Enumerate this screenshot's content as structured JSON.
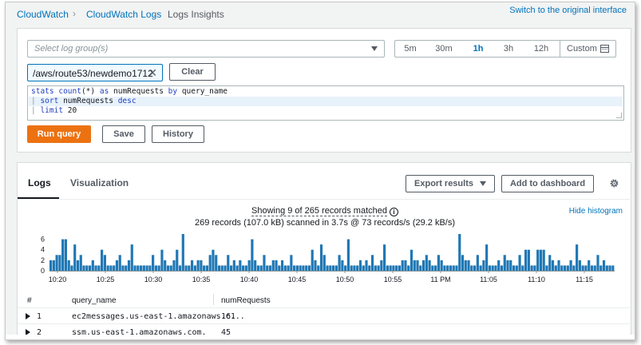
{
  "breadcrumb": {
    "items": [
      "CloudWatch",
      "CloudWatch Logs",
      "Logs Insights"
    ]
  },
  "switch_link": "Switch to the original interface",
  "query": {
    "log_group_placeholder": "Select log group(s)",
    "time_ranges": [
      "5m",
      "30m",
      "1h",
      "3h",
      "12h"
    ],
    "time_selected": "1h",
    "custom_label": "Custom",
    "selected_log_group": "/aws/route53/newdemo1712",
    "clear_label": "Clear",
    "code": {
      "line1": {
        "kw1": "stats",
        "plain1": " ",
        "kw2": "count",
        "plain2": "(*) ",
        "kw3": "as",
        "plain3": " numRequests ",
        "kw4": "by",
        "plain4": " query_name"
      },
      "line2": {
        "pipe": "| ",
        "kw1": "sort",
        "plain1": " numRequests ",
        "kw2": "desc"
      },
      "line3": {
        "pipe": "| ",
        "kw1": "limit",
        "plain1": " 20"
      }
    },
    "run_label": "Run query",
    "save_label": "Save",
    "history_label": "History"
  },
  "results": {
    "tabs": [
      "Logs",
      "Visualization"
    ],
    "export_label": "Export results",
    "add_dashboard_label": "Add to dashboard",
    "showing_text": "Showing 9 of 265 records matched",
    "scanned_text": "269 records (107.0 kB) scanned in 3.7s @ 73 records/s (29.2 kB/s)",
    "hide_histogram": "Hide histogram",
    "columns": [
      "#",
      "query_name",
      "numRequests"
    ],
    "rows": [
      {
        "n": "1",
        "query_name": "ec2messages.us-east-1.amazonaws.c...",
        "count": "161"
      },
      {
        "n": "2",
        "query_name": "ssm.us-east-1.amazonaws.com.",
        "count": "45"
      }
    ]
  },
  "chart_data": {
    "type": "bar",
    "ylim": [
      0,
      7
    ],
    "yticks": [
      0,
      2,
      4,
      6
    ],
    "xticks": [
      "10:20",
      "10:25",
      "10:30",
      "10:35",
      "10:40",
      "10:45",
      "10:50",
      "10:55",
      "11 PM",
      "11:05",
      "11:10",
      "11:15"
    ],
    "color": "#1f77b4",
    "values": [
      2,
      2,
      3,
      3,
      6,
      6,
      2,
      1,
      5,
      2,
      3,
      1,
      1,
      1,
      2,
      1,
      1,
      4,
      3,
      1,
      1,
      1,
      2,
      3,
      1,
      1,
      2,
      5,
      1,
      1,
      1,
      1,
      1,
      1,
      3,
      1,
      1,
      4,
      2,
      1,
      1,
      2,
      4,
      1,
      7,
      1,
      1,
      2,
      1,
      2,
      2,
      1,
      1,
      3,
      4,
      3,
      1,
      1,
      1,
      3,
      1,
      2,
      1,
      2,
      1,
      1,
      2,
      6,
      2,
      1,
      1,
      3,
      1,
      1,
      2,
      2,
      1,
      2,
      1,
      1,
      3,
      1,
      1,
      1,
      1,
      1,
      1,
      4,
      2,
      1,
      5,
      3,
      1,
      1,
      1,
      1,
      3,
      2,
      1,
      6,
      1,
      1,
      1,
      2,
      1,
      2,
      1,
      3,
      1,
      1,
      2,
      5,
      1,
      1,
      1,
      1,
      1,
      2,
      2,
      1,
      4,
      2,
      2,
      1,
      2,
      3,
      2,
      1,
      1,
      3,
      2,
      1,
      1,
      1,
      1,
      1,
      7,
      3,
      2,
      2,
      1,
      1,
      3,
      1,
      2,
      5,
      1,
      1,
      1,
      2,
      1,
      3,
      2,
      2,
      1,
      1,
      3,
      1,
      4,
      4,
      1,
      1,
      4,
      4,
      4,
      1,
      3,
      2,
      1,
      2,
      1,
      1,
      1,
      2,
      1,
      5,
      2,
      1,
      1,
      2,
      1,
      1,
      3,
      1,
      2,
      1,
      1,
      1
    ]
  }
}
